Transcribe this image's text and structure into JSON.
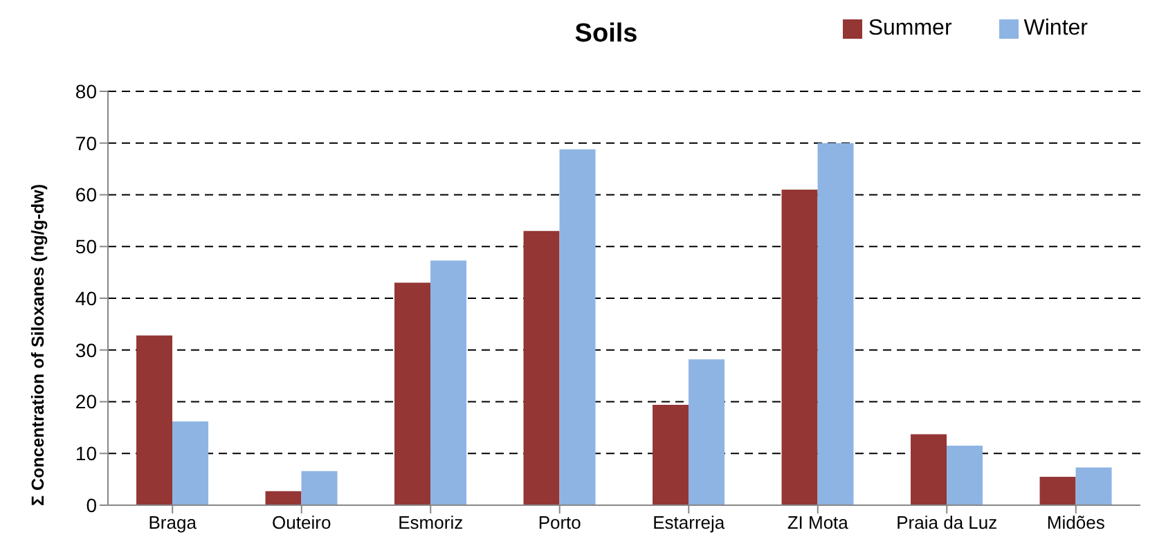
{
  "chart_data": {
    "type": "bar",
    "title": "Soils",
    "ylabel": "Σ Concentration of Siloxanes  (ng/g-dw)",
    "categories": [
      "Braga",
      "Outeiro",
      "Esmoriz",
      "Porto",
      "Estarreja",
      "ZI Mota",
      "Praia da Luz",
      "Midões"
    ],
    "series": [
      {
        "name": "Summer",
        "color": "#943634",
        "values": [
          32.8,
          2.7,
          43,
          53,
          19.4,
          61,
          13.7,
          5.5
        ]
      },
      {
        "name": "Winter",
        "color": "#8eb4e3",
        "values": [
          16.2,
          6.6,
          47.3,
          68.8,
          28.2,
          70,
          11.5,
          7.3
        ]
      }
    ],
    "ylim": [
      0,
      80
    ],
    "yticks": [
      0,
      10,
      20,
      30,
      40,
      50,
      60,
      70,
      80
    ],
    "grid": "y",
    "legend": "top right"
  }
}
